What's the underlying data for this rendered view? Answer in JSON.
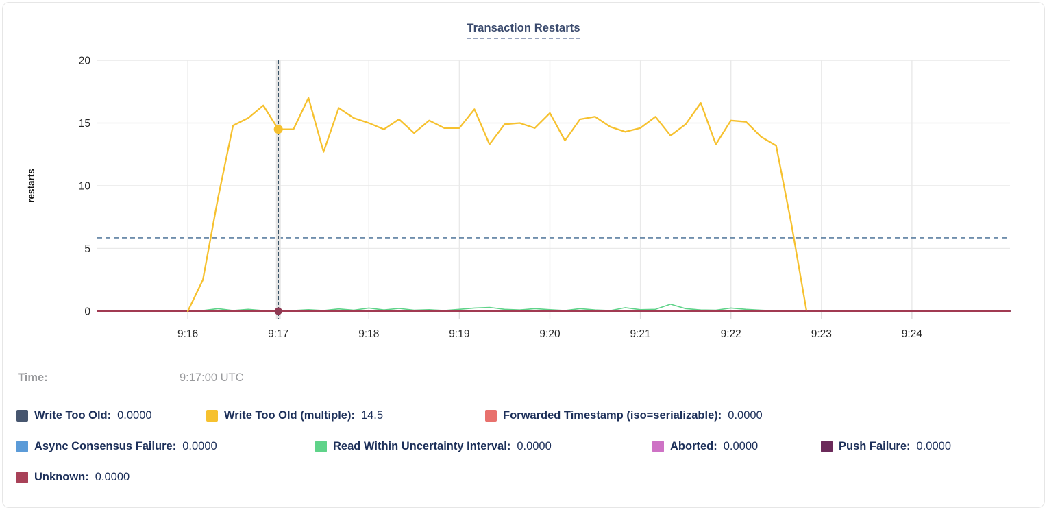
{
  "tooltip": {
    "time_label": "Time:",
    "time_value": "9:17:00 UTC"
  },
  "chart_data": {
    "type": "line",
    "title": "Transaction Restarts",
    "ylabel": "restarts",
    "ylim": [
      0,
      20
    ],
    "y_ticks": [
      0,
      5,
      10,
      15,
      20
    ],
    "x_base_time": "9:15:00",
    "x_domain_seconds": [
      0,
      605
    ],
    "x_ticks": [
      {
        "t": 60,
        "label": "9:16"
      },
      {
        "t": 120,
        "label": "9:17"
      },
      {
        "t": 180,
        "label": "9:18"
      },
      {
        "t": 240,
        "label": "9:19"
      },
      {
        "t": 300,
        "label": "9:20"
      },
      {
        "t": 360,
        "label": "9:21"
      },
      {
        "t": 420,
        "label": "9:22"
      },
      {
        "t": 480,
        "label": "9:23"
      },
      {
        "t": 540,
        "label": "9:24"
      }
    ],
    "grid": true,
    "grid_color": "#e9e9e9",
    "threshold_line": {
      "value": 5.85,
      "color": "#5b7fa0"
    },
    "hover": {
      "time_seconds": 120,
      "time_label": "9:17:00 UTC",
      "crosshair_color": "#2f4a5f",
      "band_color": "#e4e4e4",
      "dots": [
        {
          "series": "Write Too Old (multiple)",
          "value": 14.5,
          "color": "#f6c12f"
        },
        {
          "series": "Unknown",
          "value": 0,
          "color": "#8e3a53"
        }
      ]
    },
    "series": [
      {
        "name": "Write Too Old",
        "color": "#47566f",
        "points": [
          [
            0,
            0
          ],
          [
            605,
            0
          ]
        ]
      },
      {
        "name": "Forwarded Timestamp (iso=serializable)",
        "color": "#e8716d",
        "points": [
          [
            0,
            0
          ],
          [
            605,
            0
          ]
        ]
      },
      {
        "name": "Async Consensus Failure",
        "color": "#5b9bd8",
        "points": [
          [
            0,
            0
          ],
          [
            605,
            0
          ]
        ]
      },
      {
        "name": "Aborted",
        "color": "#ce72c5",
        "points": [
          [
            0,
            0
          ],
          [
            605,
            0
          ]
        ]
      },
      {
        "name": "Push Failure",
        "color": "#6b2a5a",
        "points": [
          [
            0,
            0
          ],
          [
            605,
            0
          ]
        ]
      },
      {
        "name": "Read Within Uncertainty Interval",
        "color": "#5fd389",
        "points": [
          [
            0,
            0
          ],
          [
            60,
            0
          ],
          [
            70,
            0.05
          ],
          [
            80,
            0.2
          ],
          [
            90,
            0.05
          ],
          [
            100,
            0.15
          ],
          [
            110,
            0.05
          ],
          [
            120,
            0
          ],
          [
            130,
            0.05
          ],
          [
            140,
            0.12
          ],
          [
            150,
            0.05
          ],
          [
            160,
            0.18
          ],
          [
            170,
            0.08
          ],
          [
            180,
            0.25
          ],
          [
            190,
            0.1
          ],
          [
            200,
            0.22
          ],
          [
            210,
            0.08
          ],
          [
            220,
            0.12
          ],
          [
            230,
            0.05
          ],
          [
            240,
            0.15
          ],
          [
            250,
            0.25
          ],
          [
            260,
            0.3
          ],
          [
            270,
            0.15
          ],
          [
            280,
            0.1
          ],
          [
            290,
            0.2
          ],
          [
            300,
            0.12
          ],
          [
            310,
            0.05
          ],
          [
            320,
            0.2
          ],
          [
            330,
            0.1
          ],
          [
            340,
            0.05
          ],
          [
            350,
            0.28
          ],
          [
            360,
            0.12
          ],
          [
            370,
            0.15
          ],
          [
            380,
            0.55
          ],
          [
            390,
            0.2
          ],
          [
            400,
            0.1
          ],
          [
            410,
            0.08
          ],
          [
            420,
            0.25
          ],
          [
            430,
            0.15
          ],
          [
            440,
            0.08
          ],
          [
            450,
            0.03
          ],
          [
            460,
            0
          ],
          [
            605,
            0
          ]
        ]
      },
      {
        "name": "Unknown",
        "color": "#a13a52",
        "points": [
          [
            0,
            0
          ],
          [
            605,
            0
          ]
        ]
      },
      {
        "name": "Write Too Old (multiple)",
        "color": "#f6c12f",
        "points": [
          [
            60,
            0
          ],
          [
            70,
            2.5
          ],
          [
            80,
            9
          ],
          [
            90,
            14.8
          ],
          [
            100,
            15.4
          ],
          [
            110,
            16.4
          ],
          [
            120,
            14.5
          ],
          [
            130,
            14.5
          ],
          [
            140,
            17.0
          ],
          [
            150,
            12.7
          ],
          [
            160,
            16.2
          ],
          [
            170,
            15.4
          ],
          [
            180,
            15.0
          ],
          [
            190,
            14.5
          ],
          [
            200,
            15.3
          ],
          [
            210,
            14.2
          ],
          [
            220,
            15.2
          ],
          [
            230,
            14.6
          ],
          [
            240,
            14.6
          ],
          [
            250,
            16.1
          ],
          [
            260,
            13.3
          ],
          [
            270,
            14.9
          ],
          [
            280,
            15.0
          ],
          [
            290,
            14.6
          ],
          [
            300,
            15.8
          ],
          [
            310,
            13.6
          ],
          [
            320,
            15.3
          ],
          [
            330,
            15.5
          ],
          [
            340,
            14.7
          ],
          [
            350,
            14.3
          ],
          [
            360,
            14.6
          ],
          [
            370,
            15.5
          ],
          [
            380,
            14.0
          ],
          [
            390,
            14.9
          ],
          [
            400,
            16.6
          ],
          [
            410,
            13.3
          ],
          [
            420,
            15.2
          ],
          [
            430,
            15.1
          ],
          [
            440,
            13.9
          ],
          [
            450,
            13.2
          ],
          [
            460,
            7.0
          ],
          [
            470,
            0.1
          ]
        ]
      }
    ]
  },
  "legend": {
    "rows": [
      [
        {
          "label": "Write Too Old:",
          "value": "0.0000",
          "color": "#47566f"
        },
        {
          "label": "Write Too Old (multiple):",
          "value": "14.5",
          "color": "#f6c12f"
        },
        {
          "label": "Forwarded Timestamp (iso=serializable):",
          "value": "0.0000",
          "color": "#e8716d"
        }
      ],
      [
        {
          "label": "Async Consensus Failure:",
          "value": "0.0000",
          "color": "#5b9bd8"
        },
        {
          "label": "Read Within Uncertainty Interval:",
          "value": "0.0000",
          "color": "#5fd389"
        },
        {
          "label": "Aborted:",
          "value": "0.0000",
          "color": "#ce72c5"
        },
        {
          "label": "Push Failure:",
          "value": "0.0000",
          "color": "#6b2a5a"
        }
      ],
      [
        {
          "label": "Unknown:",
          "value": "0.0000",
          "color": "#a84158"
        }
      ]
    ]
  }
}
